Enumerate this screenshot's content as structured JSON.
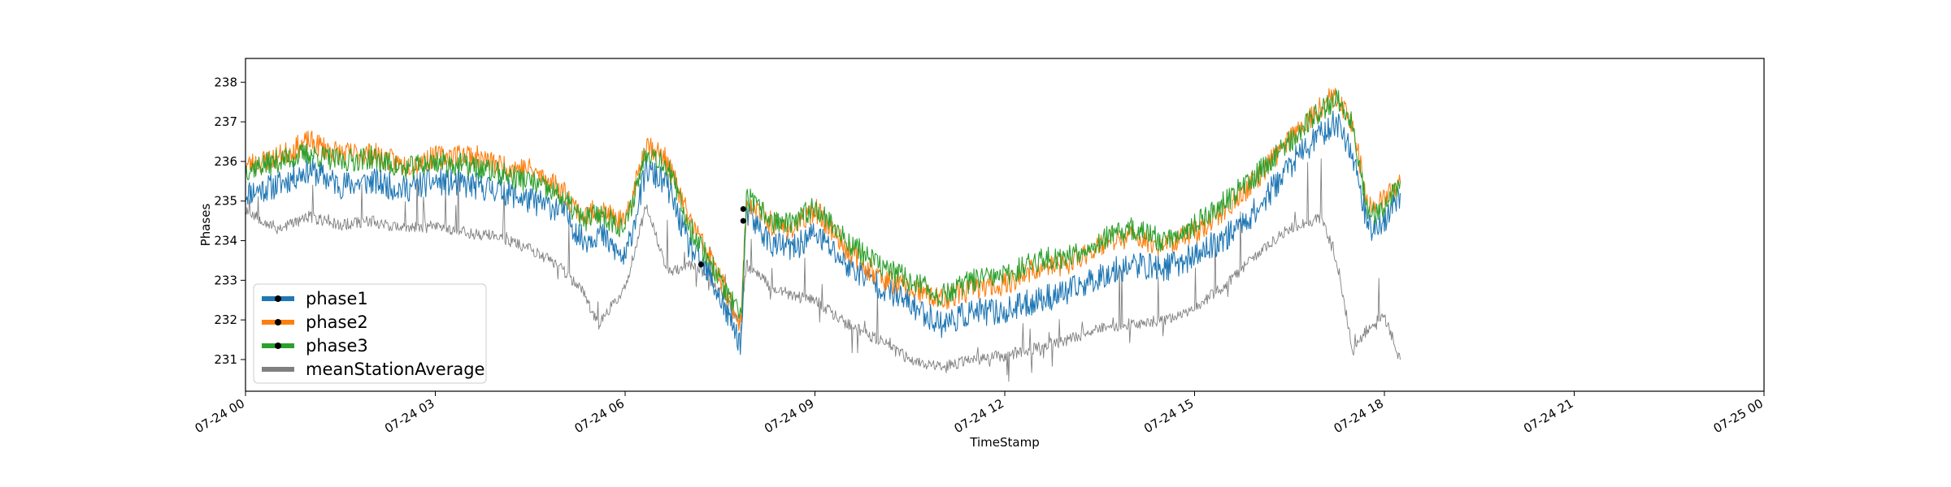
{
  "chart_data": {
    "type": "line",
    "xlabel": "TimeStamp",
    "ylabel": "Phases",
    "ylim": [
      230.2,
      238.6
    ],
    "xlim": [
      "07-24 00:00",
      "07-25 00:00"
    ],
    "yticks": [
      231,
      232,
      233,
      234,
      235,
      236,
      237,
      238
    ],
    "xticks": [
      "07-24 00",
      "07-24 03",
      "07-24 06",
      "07-24 09",
      "07-24 12",
      "07-24 15",
      "07-24 18",
      "07-24 21",
      "07-25 00"
    ],
    "legend_position": "lower-left",
    "grid": false,
    "series": [
      {
        "name": "phase1",
        "color": "#1f77b4",
        "points": [
          [
            "07-24 00:00",
            235.2
          ],
          [
            "07-24 00:30",
            235.4
          ],
          [
            "07-24 01:00",
            235.8
          ],
          [
            "07-24 01:30",
            235.4
          ],
          [
            "07-24 02:00",
            235.5
          ],
          [
            "07-24 02:30",
            235.3
          ],
          [
            "07-24 03:00",
            235.5
          ],
          [
            "07-24 03:30",
            235.4
          ],
          [
            "07-24 04:00",
            235.3
          ],
          [
            "07-24 04:30",
            235.0
          ],
          [
            "07-24 05:00",
            234.8
          ],
          [
            "07-24 05:20",
            234.0
          ],
          [
            "07-24 05:35",
            234.2
          ],
          [
            "07-24 06:00",
            233.5
          ],
          [
            "07-24 06:20",
            235.8
          ],
          [
            "07-24 06:40",
            235.4
          ],
          [
            "07-24 07:00",
            233.9
          ],
          [
            "07-24 07:20",
            233.1
          ],
          [
            "07-24 07:50",
            231.4
          ],
          [
            "07-24 07:55",
            234.7
          ],
          [
            "07-24 08:20",
            233.9
          ],
          [
            "07-24 08:40",
            233.8
          ],
          [
            "07-24 09:00",
            234.2
          ],
          [
            "07-24 09:30",
            233.4
          ],
          [
            "07-24 10:00",
            232.9
          ],
          [
            "07-24 10:30",
            232.4
          ],
          [
            "07-24 11:00",
            231.9
          ],
          [
            "07-24 11:30",
            232.2
          ],
          [
            "07-24 12:00",
            232.2
          ],
          [
            "07-24 12:30",
            232.5
          ],
          [
            "07-24 13:00",
            232.7
          ],
          [
            "07-24 13:30",
            233.1
          ],
          [
            "07-24 14:00",
            233.4
          ],
          [
            "07-24 14:30",
            233.3
          ],
          [
            "07-24 15:00",
            233.6
          ],
          [
            "07-24 15:30",
            234.1
          ],
          [
            "07-24 16:00",
            234.8
          ],
          [
            "07-24 16:30",
            235.9
          ],
          [
            "07-24 17:00",
            236.7
          ],
          [
            "07-24 17:15",
            237.0
          ],
          [
            "07-24 17:30",
            236.2
          ],
          [
            "07-24 17:45",
            234.3
          ],
          [
            "07-24 18:00",
            234.5
          ],
          [
            "07-24 18:15",
            235.2
          ]
        ]
      },
      {
        "name": "phase2",
        "color": "#ff7f0e",
        "points": [
          [
            "07-24 00:00",
            235.9
          ],
          [
            "07-24 00:30",
            236.1
          ],
          [
            "07-24 01:00",
            236.5
          ],
          [
            "07-24 01:30",
            236.2
          ],
          [
            "07-24 02:00",
            236.2
          ],
          [
            "07-24 02:30",
            235.9
          ],
          [
            "07-24 03:00",
            236.1
          ],
          [
            "07-24 03:30",
            236.2
          ],
          [
            "07-24 04:00",
            235.9
          ],
          [
            "07-24 04:30",
            235.8
          ],
          [
            "07-24 05:00",
            235.3
          ],
          [
            "07-24 05:20",
            234.6
          ],
          [
            "07-24 05:35",
            234.8
          ],
          [
            "07-24 06:00",
            234.4
          ],
          [
            "07-24 06:20",
            236.5
          ],
          [
            "07-24 06:40",
            236.0
          ],
          [
            "07-24 07:00",
            234.6
          ],
          [
            "07-24 07:20",
            233.6
          ],
          [
            "07-24 07:50",
            231.9
          ],
          [
            "07-24 07:55",
            235.0
          ],
          [
            "07-24 08:20",
            234.4
          ],
          [
            "07-24 08:40",
            234.3
          ],
          [
            "07-24 09:00",
            234.8
          ],
          [
            "07-24 09:30",
            233.8
          ],
          [
            "07-24 10:00",
            233.1
          ],
          [
            "07-24 10:30",
            232.8
          ],
          [
            "07-24 11:00",
            232.5
          ],
          [
            "07-24 11:30",
            232.8
          ],
          [
            "07-24 12:00",
            232.9
          ],
          [
            "07-24 12:30",
            233.3
          ],
          [
            "07-24 13:00",
            233.4
          ],
          [
            "07-24 13:30",
            233.9
          ],
          [
            "07-24 14:00",
            234.1
          ],
          [
            "07-24 14:30",
            233.9
          ],
          [
            "07-24 15:00",
            234.2
          ],
          [
            "07-24 15:30",
            234.8
          ],
          [
            "07-24 16:00",
            235.6
          ],
          [
            "07-24 16:30",
            236.6
          ],
          [
            "07-24 17:00",
            237.4
          ],
          [
            "07-24 17:15",
            237.7
          ],
          [
            "07-24 17:30",
            236.9
          ],
          [
            "07-24 17:45",
            234.8
          ],
          [
            "07-24 18:00",
            235.0
          ],
          [
            "07-24 18:15",
            235.5
          ]
        ]
      },
      {
        "name": "phase3",
        "color": "#2ca02c",
        "points": [
          [
            "07-24 00:00",
            235.8
          ],
          [
            "07-24 00:30",
            236.0
          ],
          [
            "07-24 01:00",
            236.2
          ],
          [
            "07-24 01:30",
            236.0
          ],
          [
            "07-24 02:00",
            236.1
          ],
          [
            "07-24 02:30",
            235.8
          ],
          [
            "07-24 03:00",
            236.0
          ],
          [
            "07-24 03:30",
            235.9
          ],
          [
            "07-24 04:00",
            235.7
          ],
          [
            "07-24 04:30",
            235.5
          ],
          [
            "07-24 05:00",
            235.1
          ],
          [
            "07-24 05:20",
            234.5
          ],
          [
            "07-24 05:35",
            234.7
          ],
          [
            "07-24 06:00",
            234.3
          ],
          [
            "07-24 06:20",
            236.3
          ],
          [
            "07-24 06:40",
            235.9
          ],
          [
            "07-24 07:00",
            234.4
          ],
          [
            "07-24 07:20",
            233.5
          ],
          [
            "07-24 07:50",
            232.0
          ],
          [
            "07-24 07:55",
            235.1
          ],
          [
            "07-24 08:20",
            234.5
          ],
          [
            "07-24 08:40",
            234.4
          ],
          [
            "07-24 09:00",
            234.9
          ],
          [
            "07-24 09:30",
            234.0
          ],
          [
            "07-24 10:00",
            233.4
          ],
          [
            "07-24 10:30",
            233.0
          ],
          [
            "07-24 11:00",
            232.6
          ],
          [
            "07-24 11:30",
            233.0
          ],
          [
            "07-24 12:00",
            233.1
          ],
          [
            "07-24 12:30",
            233.5
          ],
          [
            "07-24 13:00",
            233.6
          ],
          [
            "07-24 13:30",
            234.0
          ],
          [
            "07-24 14:00",
            234.3
          ],
          [
            "07-24 14:30",
            234.0
          ],
          [
            "07-24 15:00",
            234.4
          ],
          [
            "07-24 15:30",
            235.0
          ],
          [
            "07-24 16:00",
            235.7
          ],
          [
            "07-24 16:30",
            236.5
          ],
          [
            "07-24 17:00",
            237.3
          ],
          [
            "07-24 17:15",
            237.6
          ],
          [
            "07-24 17:30",
            237.0
          ],
          [
            "07-24 17:45",
            234.6
          ],
          [
            "07-24 18:00",
            234.9
          ],
          [
            "07-24 18:15",
            235.5
          ]
        ]
      },
      {
        "name": "meanStationAverage",
        "color": "#808080",
        "points": [
          [
            "07-24 00:00",
            234.8
          ],
          [
            "07-24 00:30",
            234.3
          ],
          [
            "07-24 01:00",
            234.6
          ],
          [
            "07-24 01:30",
            234.4
          ],
          [
            "07-24 02:00",
            234.5
          ],
          [
            "07-24 02:30",
            234.3
          ],
          [
            "07-24 03:00",
            234.4
          ],
          [
            "07-24 03:30",
            234.2
          ],
          [
            "07-24 04:00",
            234.1
          ],
          [
            "07-24 04:30",
            233.8
          ],
          [
            "07-24 05:00",
            233.3
          ],
          [
            "07-24 05:20",
            232.7
          ],
          [
            "07-24 05:35",
            231.9
          ],
          [
            "07-24 06:00",
            232.8
          ],
          [
            "07-24 06:20",
            234.9
          ],
          [
            "07-24 06:40",
            233.2
          ],
          [
            "07-24 07:00",
            233.4
          ],
          [
            "07-24 07:20",
            233.1
          ],
          [
            "07-24 07:50",
            231.9
          ],
          [
            "07-24 07:55",
            233.4
          ],
          [
            "07-24 08:20",
            232.8
          ],
          [
            "07-24 08:40",
            232.6
          ],
          [
            "07-24 09:00",
            232.5
          ],
          [
            "07-24 09:30",
            231.9
          ],
          [
            "07-24 10:00",
            231.5
          ],
          [
            "07-24 10:30",
            231.0
          ],
          [
            "07-24 11:00",
            230.8
          ],
          [
            "07-24 11:30",
            231.0
          ],
          [
            "07-24 12:00",
            231.1
          ],
          [
            "07-24 12:30",
            231.3
          ],
          [
            "07-24 13:00",
            231.5
          ],
          [
            "07-24 13:30",
            231.8
          ],
          [
            "07-24 14:00",
            231.9
          ],
          [
            "07-24 14:30",
            232.0
          ],
          [
            "07-24 15:00",
            232.3
          ],
          [
            "07-24 15:30",
            232.9
          ],
          [
            "07-24 16:00",
            233.7
          ],
          [
            "07-24 16:30",
            234.3
          ],
          [
            "07-24 17:00",
            234.6
          ],
          [
            "07-24 17:15",
            233.5
          ],
          [
            "07-24 17:30",
            231.2
          ],
          [
            "07-24 17:45",
            231.8
          ],
          [
            "07-24 18:00",
            232.1
          ],
          [
            "07-24 18:15",
            231.0
          ]
        ]
      }
    ],
    "markers": [
      {
        "x": "07-24 07:12",
        "y": 233.4
      },
      {
        "x": "07-24 07:52",
        "y": 234.8
      },
      {
        "x": "07-24 07:52",
        "y": 234.5
      }
    ]
  }
}
